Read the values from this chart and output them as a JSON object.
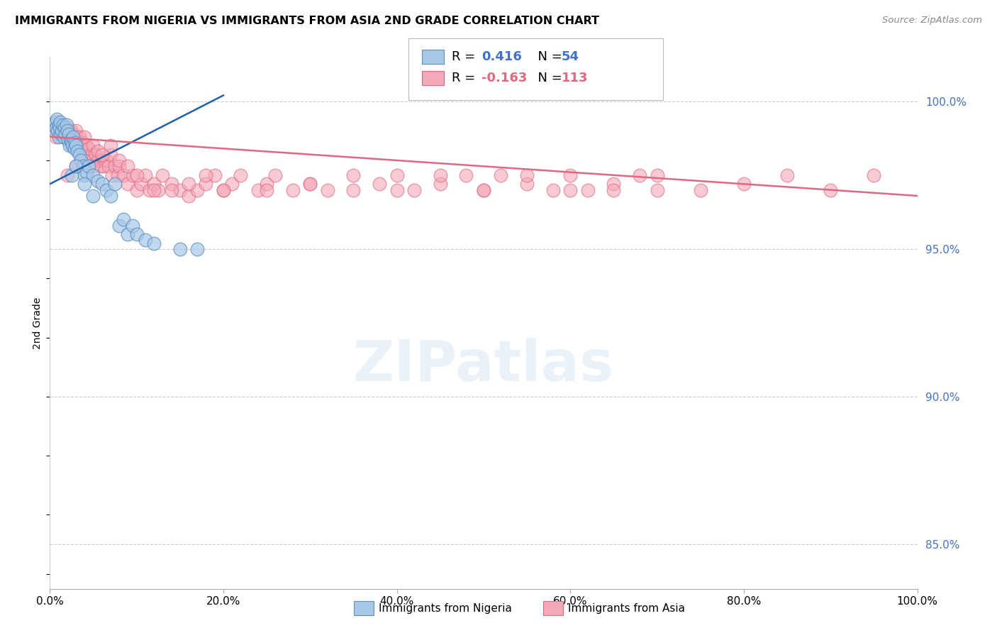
{
  "title": "IMMIGRANTS FROM NIGERIA VS IMMIGRANTS FROM ASIA 2ND GRADE CORRELATION CHART",
  "source": "Source: ZipAtlas.com",
  "ylabel": "2nd Grade",
  "xmin": 0.0,
  "xmax": 100.0,
  "ymin": 83.5,
  "ymax": 101.5,
  "yticks": [
    85.0,
    90.0,
    95.0,
    100.0
  ],
  "ytick_labels": [
    "85.0%",
    "90.0%",
    "95.0%",
    "100.0%"
  ],
  "nigeria_R": 0.416,
  "nigeria_N": 54,
  "asia_R": -0.163,
  "asia_N": 113,
  "nigeria_color": "#a8c8e8",
  "asia_color": "#f4a8b8",
  "nigeria_edge_color": "#5a8fc0",
  "asia_edge_color": "#e06880",
  "nigeria_line_color": "#2060a8",
  "asia_line_color": "#e06880",
  "legend_nigeria_label": "Immigrants from Nigeria",
  "legend_asia_label": "Immigrants from Asia",
  "watermark": "ZIPatlas",
  "nigeria_trend_x": [
    0.0,
    20.0
  ],
  "nigeria_trend_y": [
    97.2,
    100.2
  ],
  "asia_trend_x": [
    0.0,
    100.0
  ],
  "asia_trend_y": [
    98.8,
    96.8
  ],
  "nigeria_x": [
    0.3,
    0.5,
    0.6,
    0.7,
    0.8,
    0.9,
    1.0,
    1.0,
    1.1,
    1.2,
    1.3,
    1.4,
    1.5,
    1.6,
    1.7,
    1.8,
    1.9,
    2.0,
    2.1,
    2.2,
    2.3,
    2.4,
    2.5,
    2.6,
    2.7,
    2.8,
    2.9,
    3.0,
    3.2,
    3.4,
    3.6,
    3.8,
    4.0,
    4.2,
    4.5,
    5.0,
    5.5,
    6.0,
    6.5,
    7.0,
    7.5,
    8.0,
    8.5,
    9.0,
    9.5,
    10.0,
    11.0,
    12.0,
    2.5,
    3.0,
    4.0,
    5.0,
    15.0,
    17.0
  ],
  "nigeria_y": [
    99.2,
    99.0,
    99.3,
    99.1,
    99.4,
    99.0,
    99.2,
    98.8,
    99.1,
    99.3,
    98.9,
    99.0,
    99.2,
    98.8,
    99.1,
    98.9,
    99.2,
    99.0,
    98.7,
    98.9,
    98.5,
    98.7,
    98.6,
    98.5,
    98.8,
    98.4,
    98.6,
    98.5,
    98.3,
    98.2,
    98.0,
    97.8,
    97.5,
    97.6,
    97.8,
    97.5,
    97.3,
    97.2,
    97.0,
    96.8,
    97.2,
    95.8,
    96.0,
    95.5,
    95.8,
    95.5,
    95.3,
    95.2,
    97.5,
    97.8,
    97.2,
    96.8,
    95.0,
    95.0
  ],
  "asia_x": [
    0.3,
    0.5,
    0.7,
    0.8,
    1.0,
    1.2,
    1.4,
    1.5,
    1.6,
    1.8,
    2.0,
    2.0,
    2.2,
    2.4,
    2.5,
    2.6,
    2.8,
    3.0,
    3.0,
    3.2,
    3.4,
    3.5,
    3.6,
    3.8,
    4.0,
    4.0,
    4.2,
    4.5,
    4.8,
    5.0,
    5.0,
    5.2,
    5.5,
    5.5,
    5.8,
    6.0,
    6.2,
    6.5,
    6.8,
    7.0,
    7.2,
    7.5,
    7.8,
    8.0,
    8.5,
    9.0,
    9.5,
    10.0,
    10.5,
    11.0,
    11.5,
    12.0,
    12.5,
    13.0,
    14.0,
    15.0,
    16.0,
    17.0,
    18.0,
    19.0,
    20.0,
    21.0,
    22.0,
    24.0,
    25.0,
    26.0,
    28.0,
    30.0,
    32.0,
    35.0,
    38.0,
    40.0,
    42.0,
    45.0,
    48.0,
    50.0,
    52.0,
    55.0,
    58.0,
    60.0,
    62.0,
    65.0,
    68.0,
    70.0,
    75.0,
    80.0,
    85.0,
    90.0,
    95.0,
    2.0,
    3.0,
    4.0,
    5.0,
    6.0,
    7.0,
    8.0,
    9.0,
    10.0,
    12.0,
    14.0,
    16.0,
    18.0,
    20.0,
    25.0,
    30.0,
    35.0,
    40.0,
    45.0,
    50.0,
    55.0,
    60.0,
    65.0,
    70.0
  ],
  "asia_y": [
    99.0,
    99.2,
    98.8,
    99.1,
    99.0,
    99.2,
    98.9,
    99.0,
    98.8,
    99.0,
    98.9,
    99.1,
    98.8,
    99.0,
    98.7,
    98.9,
    98.5,
    98.8,
    99.0,
    98.6,
    98.8,
    98.5,
    98.4,
    98.6,
    98.8,
    98.3,
    98.5,
    98.4,
    98.2,
    98.5,
    98.0,
    98.2,
    98.0,
    98.3,
    97.8,
    98.0,
    97.8,
    98.0,
    97.8,
    98.2,
    97.5,
    97.8,
    97.5,
    97.8,
    97.5,
    97.2,
    97.5,
    97.0,
    97.2,
    97.5,
    97.0,
    97.2,
    97.0,
    97.5,
    97.2,
    97.0,
    96.8,
    97.0,
    97.2,
    97.5,
    97.0,
    97.2,
    97.5,
    97.0,
    97.2,
    97.5,
    97.0,
    97.2,
    97.0,
    97.0,
    97.2,
    97.5,
    97.0,
    97.2,
    97.5,
    97.0,
    97.5,
    97.2,
    97.0,
    97.5,
    97.0,
    97.2,
    97.5,
    97.0,
    97.0,
    97.2,
    97.5,
    97.0,
    97.5,
    97.5,
    97.8,
    98.0,
    97.8,
    98.2,
    98.5,
    98.0,
    97.8,
    97.5,
    97.0,
    97.0,
    97.2,
    97.5,
    97.0,
    97.0,
    97.2,
    97.5,
    97.0,
    97.5,
    97.0,
    97.5,
    97.0,
    97.0,
    97.5
  ]
}
